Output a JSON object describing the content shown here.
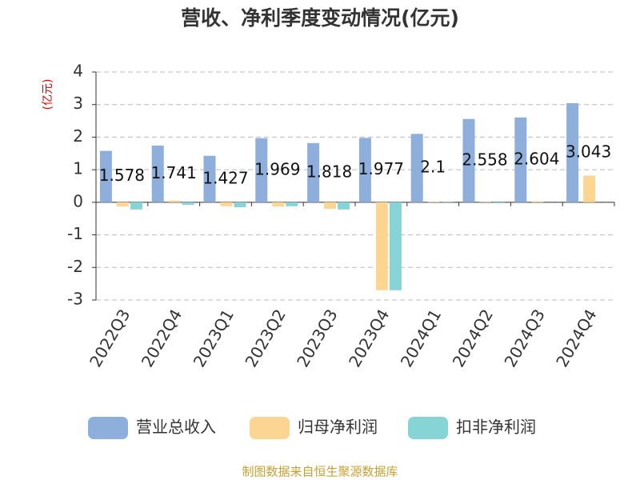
{
  "chart_data": {
    "type": "bar",
    "title": "营收、净利季度变动情况(亿元)",
    "y_label": "(亿元)",
    "source": "制图数据来自恒生聚源数据库",
    "categories": [
      "2022Q3",
      "2022Q4",
      "2023Q1",
      "2023Q2",
      "2023Q3",
      "2023Q4",
      "2024Q1",
      "2024Q2",
      "2024Q3",
      "2024Q4"
    ],
    "series": [
      {
        "name": "营业总收入",
        "color": "#8eaedb",
        "values": [
          1.578,
          1.741,
          1.427,
          1.969,
          1.818,
          1.977,
          2.1,
          2.558,
          2.604,
          3.043
        ],
        "show_labels": true
      },
      {
        "name": "归母净利润",
        "color": "#fdd592",
        "values": [
          -0.13,
          0.05,
          -0.12,
          -0.13,
          -0.2,
          -2.7,
          0.02,
          0.01,
          0.03,
          0.82
        ],
        "show_labels": false
      },
      {
        "name": "扣非净利润",
        "color": "#86d4d6",
        "values": [
          -0.22,
          -0.08,
          -0.15,
          -0.12,
          -0.22,
          -2.7,
          0.01,
          -0.03,
          0.0,
          0.0
        ],
        "show_labels": false
      }
    ],
    "ylim": [
      -3,
      4
    ],
    "yticks": [
      -3,
      -2,
      -1,
      0,
      1,
      2,
      3,
      4
    ],
    "grid": true,
    "legend": "bottom"
  }
}
